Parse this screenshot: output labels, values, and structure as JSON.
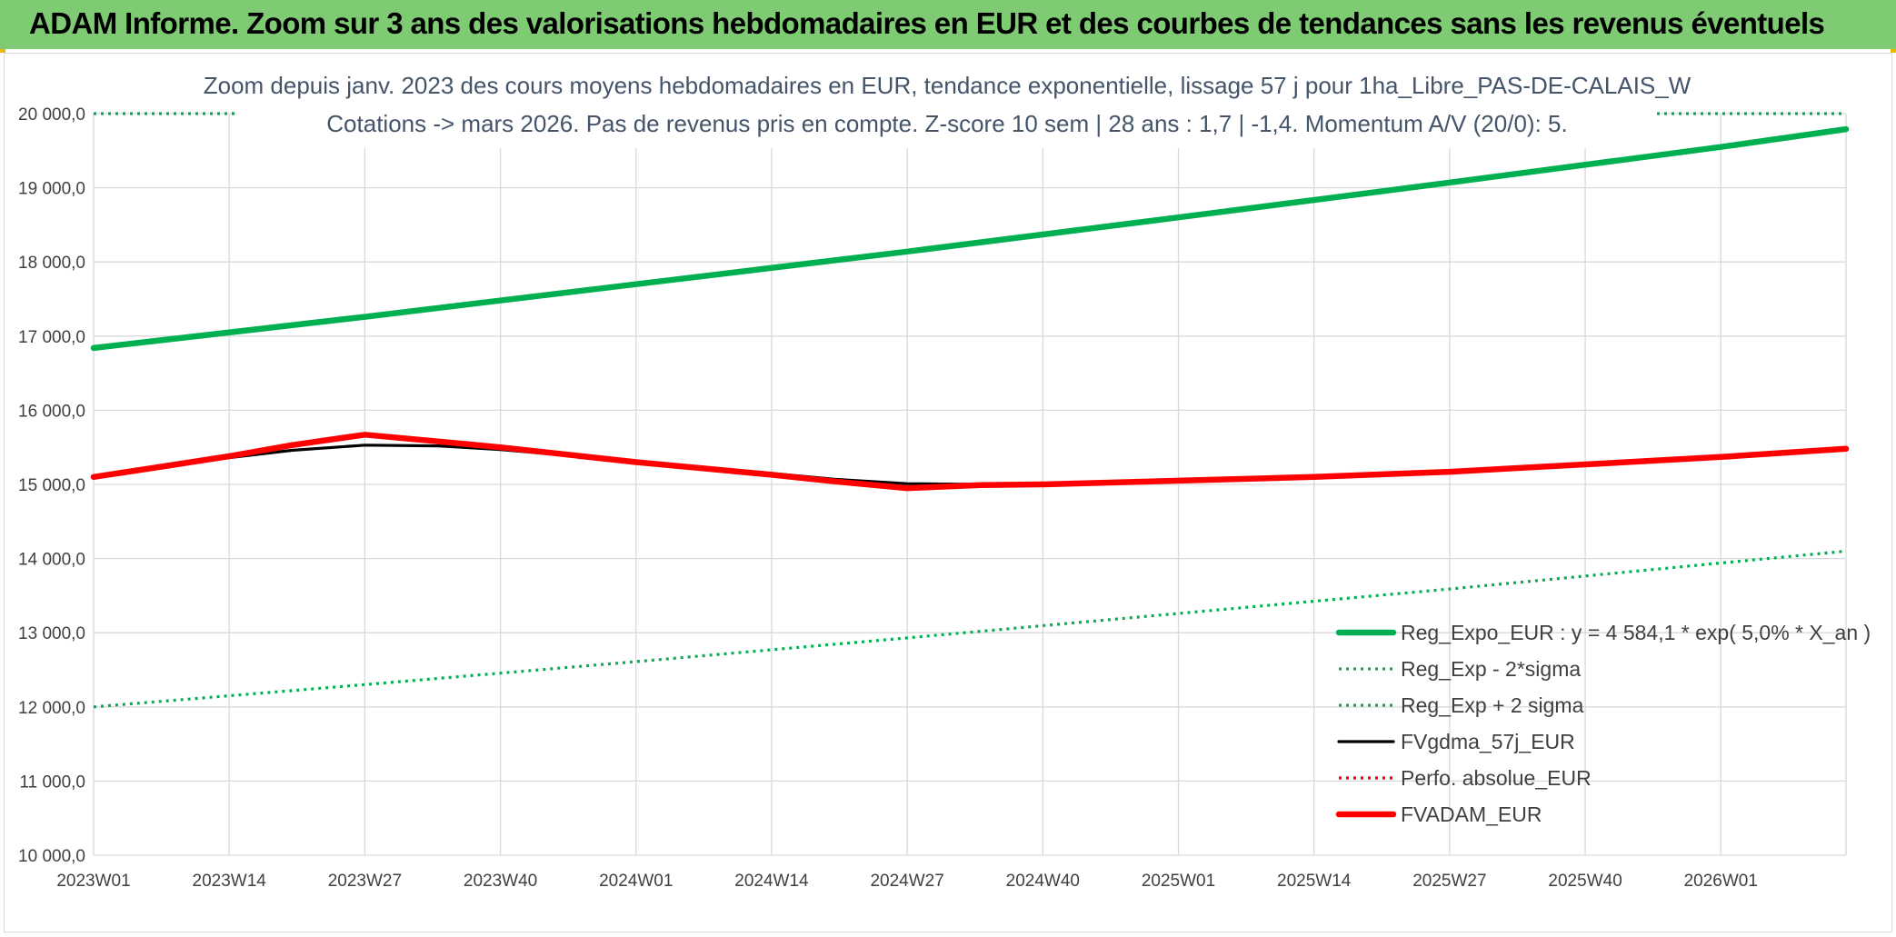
{
  "banner": {
    "title": "ADAM Informe. Zoom sur 3 ans des valorisations hebdomadaires en EUR et des courbes de tendances sans les revenus éventuels"
  },
  "chart_data": {
    "type": "line",
    "title": "Zoom depuis janv. 2023 des cours moyens hebdomadaires en EUR, tendance exponentielle, lissage 57 j pour 1ha_Libre_PAS-DE-CALAIS_W",
    "subtitle": "Cotations -> mars 2026. Pas de revenus pris en compte. Z-score 10 sem | 28 ans : 1,7 | -1,4. Momentum A/V (20/0): 5.",
    "x_tick_labels": [
      "2023W01",
      "2023W14",
      "2023W27",
      "2023W40",
      "2024W01",
      "2024W14",
      "2024W27",
      "2024W40",
      "2025W01",
      "2025W14",
      "2025W27",
      "2025W40",
      "2026W01"
    ],
    "x_range": [
      "2023W01",
      "2026W13"
    ],
    "y_tick_labels": [
      "10 000,0",
      "11 000,0",
      "12 000,0",
      "13 000,0",
      "14 000,0",
      "15 000,0",
      "16 000,0",
      "17 000,0",
      "18 000,0",
      "19 000,0",
      "20 000,0"
    ],
    "ylim": [
      10000,
      20000
    ],
    "grid": true,
    "legend_position": "bottom-right",
    "series": [
      {
        "name": "Reg_Expo_EUR : y = 4 584,1 * exp( 5,0% *  X_an )",
        "color": "#00b050",
        "style": "solid-thick",
        "x": [
          "2023W01",
          "2023W27",
          "2024W01",
          "2024W27",
          "2025W01",
          "2025W27",
          "2026W01",
          "2026W13"
        ],
        "values": [
          16840,
          17260,
          17700,
          18140,
          18600,
          19070,
          19550,
          19790
        ]
      },
      {
        "name": "Reg_Exp - 2*sigma",
        "color": "#00b050",
        "style": "dotted",
        "x": [
          "2023W01",
          "2023W27",
          "2024W01",
          "2024W27",
          "2025W01",
          "2025W27",
          "2026W01",
          "2026W13"
        ],
        "values": [
          12000,
          12300,
          12610,
          12930,
          13260,
          13590,
          13940,
          14100
        ]
      },
      {
        "name": "Reg_Exp + 2 sigma",
        "color": "#00b050",
        "style": "dotted",
        "x": [
          "2023W01",
          "2026W13"
        ],
        "values": [
          20000,
          20000
        ]
      },
      {
        "name": "FVgdma_57j_EUR",
        "color": "#000000",
        "style": "solid",
        "x": [
          "2023W01",
          "2023W08",
          "2023W14",
          "2023W20",
          "2023W27",
          "2023W34",
          "2023W40",
          "2024W01",
          "2024W14",
          "2024W20",
          "2024W27",
          "2024W34",
          "2024W40",
          "2025W01",
          "2025W14",
          "2025W27",
          "2025W40",
          "2026W01",
          "2026W13"
        ],
        "values": [
          15100,
          15250,
          15360,
          15460,
          15530,
          15520,
          15470,
          15310,
          15150,
          15070,
          15010,
          15000,
          15000,
          15050,
          15100,
          15170,
          15270,
          15370,
          15470
        ]
      },
      {
        "name": "Perfo. absolue_EUR",
        "color": "#ff0000",
        "style": "dotted",
        "x": [],
        "values": []
      },
      {
        "name": "FVADAM_EUR",
        "color": "#ff0000",
        "style": "solid-thick",
        "x": [
          "2023W01",
          "2023W08",
          "2023W14",
          "2023W20",
          "2023W27",
          "2023W34",
          "2023W40",
          "2024W01",
          "2024W14",
          "2024W20",
          "2024W27",
          "2024W34",
          "2024W40",
          "2025W01",
          "2025W14",
          "2025W27",
          "2025W40",
          "2026W01",
          "2026W13"
        ],
        "values": [
          15100,
          15250,
          15380,
          15530,
          15670,
          15580,
          15500,
          15300,
          15130,
          15040,
          14950,
          14990,
          15000,
          15050,
          15100,
          15170,
          15270,
          15370,
          15480
        ]
      }
    ]
  }
}
